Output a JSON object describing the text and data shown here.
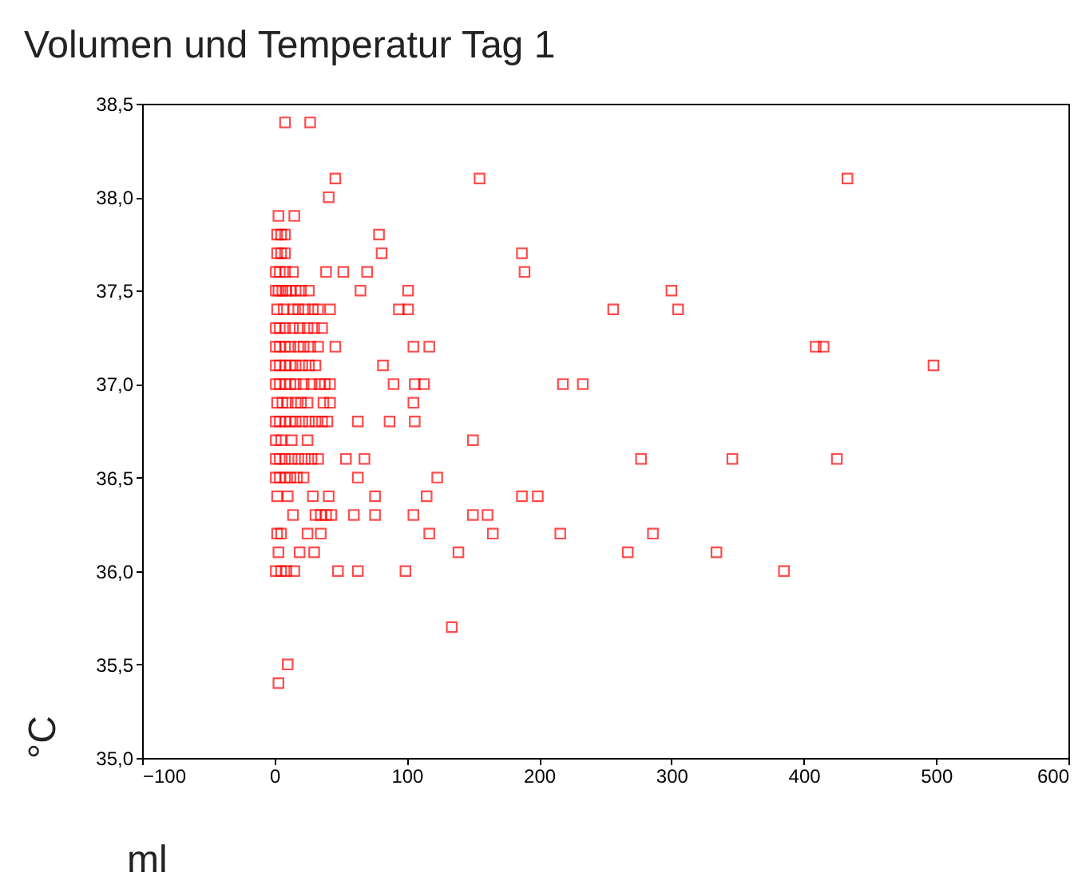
{
  "chart_data": {
    "type": "scatter",
    "title": "Volumen und Temperatur Tag 1",
    "xlabel": "ml",
    "ylabel": "°C",
    "xlim": [
      -100,
      600
    ],
    "xticks": [
      -100,
      0,
      100,
      200,
      300,
      400,
      500,
      600
    ],
    "ylim": [
      35.0,
      38.5
    ],
    "yticks": [
      {
        "value": 35.0,
        "label": "35,0"
      },
      {
        "value": 35.5,
        "label": "35,5"
      },
      {
        "value": 36.0,
        "label": "36,0"
      },
      {
        "value": 36.5,
        "label": "36,5"
      },
      {
        "value": 37.0,
        "label": "37,0"
      },
      {
        "value": 37.5,
        "label": "37,5"
      },
      {
        "value": 38.0,
        "label": "38,0"
      },
      {
        "value": 38.5,
        "label": "38,5"
      }
    ],
    "grid": false,
    "marker": "square",
    "series": [
      {
        "color": "#ff0000",
        "x": [
          8,
          27,
          46,
          155,
          433,
          41,
          3,
          15,
          2,
          5,
          8,
          79,
          2,
          5,
          8,
          81,
          187,
          1,
          4,
          8,
          14,
          39,
          52,
          70,
          189,
          1,
          3,
          6,
          9,
          12,
          16,
          20,
          26,
          65,
          101,
          300,
          2,
          7,
          14,
          18,
          23,
          29,
          33,
          42,
          94,
          101,
          256,
          305,
          1,
          4,
          8,
          14,
          19,
          25,
          30,
          36,
          1,
          4,
          8,
          12,
          18,
          22,
          27,
          33,
          46,
          105,
          117,
          409,
          415,
          1,
          4,
          8,
          12,
          16,
          21,
          26,
          31,
          82,
          498,
          1,
          4,
          8,
          12,
          16,
          22,
          28,
          34,
          38,
          42,
          90,
          106,
          113,
          218,
          233,
          2,
          6,
          10,
          16,
          20,
          25,
          37,
          42,
          105,
          1,
          4,
          8,
          12,
          16,
          21,
          26,
          31,
          36,
          40,
          63,
          87,
          106,
          1,
          5,
          13,
          25,
          150,
          1,
          4,
          8,
          13,
          18,
          23,
          28,
          33,
          54,
          68,
          277,
          346,
          425,
          1,
          4,
          8,
          12,
          17,
          22,
          63,
          123,
          2,
          10,
          29,
          41,
          76,
          115,
          187,
          199,
          14,
          31,
          35,
          39,
          43,
          60,
          76,
          105,
          150,
          161,
          2,
          5,
          25,
          35,
          117,
          165,
          216,
          286,
          3,
          19,
          30,
          139,
          267,
          334,
          1,
          5,
          9,
          15,
          48,
          63,
          99,
          385,
          134,
          10,
          3
        ],
        "values": [
          38.4,
          38.4,
          38.1,
          38.1,
          38.1,
          38.0,
          37.9,
          37.9,
          37.8,
          37.8,
          37.8,
          37.8,
          37.7,
          37.7,
          37.7,
          37.7,
          37.7,
          37.6,
          37.6,
          37.6,
          37.6,
          37.6,
          37.6,
          37.6,
          37.6,
          37.5,
          37.5,
          37.5,
          37.5,
          37.5,
          37.5,
          37.5,
          37.5,
          37.5,
          37.5,
          37.5,
          37.4,
          37.4,
          37.4,
          37.4,
          37.4,
          37.4,
          37.4,
          37.4,
          37.4,
          37.4,
          37.4,
          37.4,
          37.3,
          37.3,
          37.3,
          37.3,
          37.3,
          37.3,
          37.3,
          37.3,
          37.2,
          37.2,
          37.2,
          37.2,
          37.2,
          37.2,
          37.2,
          37.2,
          37.2,
          37.2,
          37.2,
          37.2,
          37.2,
          37.1,
          37.1,
          37.1,
          37.1,
          37.1,
          37.1,
          37.1,
          37.1,
          37.1,
          37.1,
          37.0,
          37.0,
          37.0,
          37.0,
          37.0,
          37.0,
          37.0,
          37.0,
          37.0,
          37.0,
          37.0,
          37.0,
          37.0,
          37.0,
          37.0,
          36.9,
          36.9,
          36.9,
          36.9,
          36.9,
          36.9,
          36.9,
          36.9,
          36.9,
          36.8,
          36.8,
          36.8,
          36.8,
          36.8,
          36.8,
          36.8,
          36.8,
          36.8,
          36.8,
          36.8,
          36.8,
          36.8,
          36.7,
          36.7,
          36.7,
          36.7,
          36.7,
          36.6,
          36.6,
          36.6,
          36.6,
          36.6,
          36.6,
          36.6,
          36.6,
          36.6,
          36.6,
          36.6,
          36.6,
          36.6,
          36.5,
          36.5,
          36.5,
          36.5,
          36.5,
          36.5,
          36.5,
          36.5,
          36.4,
          36.4,
          36.4,
          36.4,
          36.4,
          36.4,
          36.4,
          36.4,
          36.3,
          36.3,
          36.3,
          36.3,
          36.3,
          36.3,
          36.3,
          36.3,
          36.3,
          36.3,
          36.2,
          36.2,
          36.2,
          36.2,
          36.2,
          36.2,
          36.2,
          36.2,
          36.1,
          36.1,
          36.1,
          36.1,
          36.1,
          36.1,
          36.0,
          36.0,
          36.0,
          36.0,
          36.0,
          36.0,
          36.0,
          36.0,
          35.7,
          35.5,
          35.4
        ]
      }
    ]
  }
}
